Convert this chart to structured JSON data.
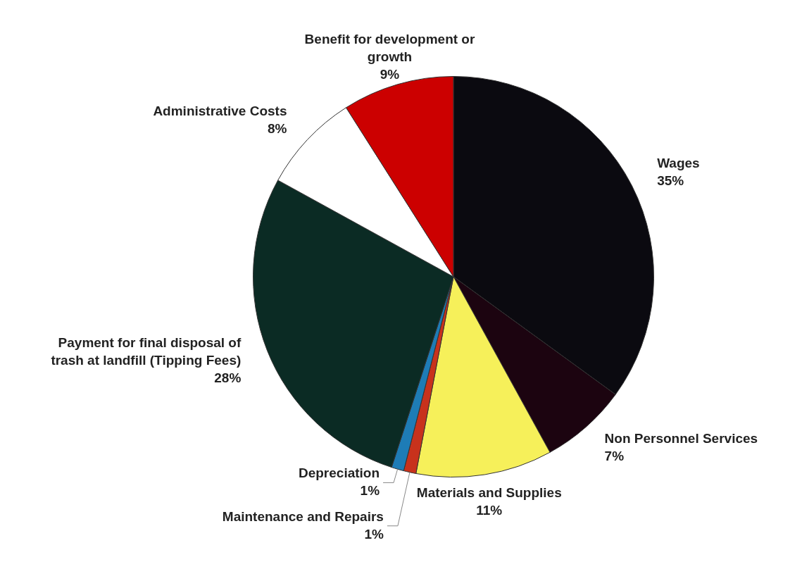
{
  "chart_data": {
    "type": "pie",
    "categories": [
      "Wages",
      "Non Personnel Services",
      "Materials and Supplies",
      "Maintenance and Repairs",
      "Depreciation",
      "Payment for final disposal of trash at landfill (Tipping Fees)",
      "Administrative Costs",
      "Benefit for development or growth"
    ],
    "values": [
      35,
      7,
      11,
      1,
      1,
      28,
      8,
      9
    ],
    "colors": [
      "#0b0a10",
      "#1c0410",
      "#f6f05a",
      "#c8321c",
      "#1e7cb6",
      "#0b2b24",
      "#ffffff",
      "#cc0000"
    ],
    "value_labels": [
      "35%",
      "7%",
      "11%",
      "1%",
      "1%",
      "28%",
      "8%",
      "9%"
    ],
    "legend": false
  }
}
